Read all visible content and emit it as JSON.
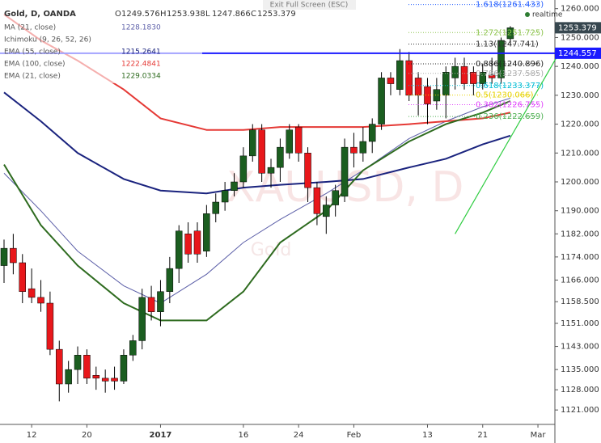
{
  "chart_data": {
    "type": "candlestick",
    "symbol": "Gold, D, OANDA",
    "header_fields": [
      "O",
      "H",
      "L",
      "C"
    ],
    "exit_text": "Exit Full Screen (ESC)",
    "realtime": "realtime",
    "watermark": "XAUUSD, D",
    "watermark_sub": "Gold",
    "ichimoku": "Ichimoku (9, 26, 52, 26)",
    "categories": [
      null,
      null,
      null,
      "12",
      null,
      null,
      null,
      null,
      null,
      "20",
      null,
      null,
      null,
      null,
      null,
      null,
      null,
      "2017",
      null,
      null,
      null,
      null,
      null,
      null,
      null,
      null,
      "16",
      null,
      null,
      null,
      null,
      null,
      "24",
      null,
      null,
      null,
      null,
      null,
      "Feb",
      null,
      null,
      null,
      null,
      null,
      null,
      null,
      "13",
      null,
      null,
      null,
      null,
      null,
      "21",
      null,
      null,
      null,
      null,
      null,
      "Mar"
    ],
    "open": [
      1171,
      1177,
      1172,
      1163,
      1160,
      1158,
      1142,
      1130,
      1135,
      1140,
      1133,
      1132,
      1132,
      1131,
      1140,
      1145,
      1160,
      1155,
      1162,
      1170,
      1182,
      1183,
      1176,
      1189,
      1193,
      1197,
      1200,
      1209,
      1218,
      1203,
      1205,
      1210,
      1219,
      1210,
      1198,
      1188,
      1192,
      1195,
      1212,
      1210,
      1214,
      1220,
      1236,
      1232,
      1242,
      1236,
      1233,
      1228,
      1230,
      1236,
      1240,
      1238,
      1234,
      1237,
      1236,
      1249.576,
      null,
      null,
      null
    ],
    "high": [
      1180,
      1182,
      1175,
      1170,
      1166,
      1162,
      1145,
      1138,
      1143,
      1142,
      1136,
      1135,
      1136,
      1142,
      1147,
      1163,
      1164,
      1166,
      1174,
      1185,
      1186,
      1186,
      1192,
      1196,
      1200,
      1203,
      1212,
      1220,
      1220,
      1208,
      1215,
      1220,
      1220,
      1212,
      1200,
      1195,
      1199,
      1215,
      1217,
      1219,
      1222,
      1238,
      1238,
      1246,
      1245,
      1238,
      1236,
      1236,
      1240,
      1243,
      1243,
      1240,
      1241,
      1243,
      1250,
      1253.938,
      null,
      null,
      null
    ],
    "low": [
      1165,
      1168,
      1158,
      1158,
      1155,
      1140,
      1124,
      1127,
      1130,
      1130,
      1128,
      1127,
      1128,
      1130,
      1138,
      1142,
      1152,
      1150,
      1158,
      1165,
      1172,
      1172,
      1174,
      1186,
      1190,
      1195,
      1198,
      1207,
      1200,
      1198,
      1200,
      1208,
      1207,
      1193,
      1185,
      1182,
      1188,
      1193,
      1205,
      1207,
      1210,
      1218,
      1230,
      1230,
      1228,
      1223,
      1220,
      1225,
      1222,
      1232,
      1232,
      1230,
      1232,
      1234,
      1234,
      1247.866,
      null,
      null,
      null
    ],
    "close": [
      1177,
      1172,
      1162,
      1160,
      1158,
      1142,
      1130,
      1135,
      1140,
      1132,
      1132,
      1131,
      1131,
      1140,
      1145,
      1160,
      1155,
      1162,
      1170,
      1183,
      1175,
      1175,
      1189,
      1193,
      1197,
      1200,
      1209,
      1218,
      1203,
      1205,
      1212,
      1218,
      1210,
      1198,
      1189,
      1192,
      1197,
      1212,
      1210,
      1214,
      1220,
      1236,
      1234,
      1242,
      1230,
      1230,
      1227,
      1232,
      1238,
      1240,
      1234,
      1234,
      1238,
      1236,
      1249,
      1253.379,
      null,
      null,
      null
    ],
    "up_color": "#1b5e20",
    "down_color": "#e8171b",
    "series": [
      {
        "name": "MA (21, close)",
        "last_label": "1228.1830",
        "color": "#5c5fa8",
        "width": 1,
        "x": [
          0,
          4,
          8,
          13,
          17,
          22,
          26,
          30,
          35,
          39,
          44,
          48,
          52,
          55
        ],
        "values": [
          1203,
          1190,
          1176,
          1164,
          1158,
          1168,
          1179,
          1187,
          1196,
          1204,
          1215,
          1221,
          1226,
          1229
        ]
      },
      {
        "name": "EMA (55, close)",
        "last_label": "1215.2641",
        "color": "#1a237e",
        "width": 2,
        "x": [
          0,
          4,
          8,
          13,
          17,
          22,
          26,
          30,
          35,
          39,
          44,
          48,
          52,
          55
        ],
        "values": [
          1231,
          1221,
          1210,
          1201,
          1197,
          1196,
          1198,
          1199,
          1200,
          1201,
          1205,
          1208,
          1213,
          1216
        ]
      },
      {
        "name": "EMA (100, close)",
        "last_label": "1222.4841",
        "color": "#e53935",
        "width": 2,
        "x": [
          0,
          4,
          8,
          13,
          17,
          22,
          26,
          30,
          35,
          39,
          44,
          48,
          52,
          55
        ],
        "values": [
          1258,
          1249,
          1242,
          1232,
          1222,
          1218,
          1218,
          1219,
          1219,
          1219,
          1220,
          1221,
          1222,
          1224
        ]
      },
      {
        "name": "EMA (21, close)",
        "last_label": "1229.0334",
        "color": "#2e6b1f",
        "width": 2,
        "x": [
          0,
          4,
          8,
          13,
          17,
          22,
          26,
          30,
          35,
          39,
          44,
          48,
          52,
          55
        ],
        "values": [
          1206,
          1185,
          1171,
          1158,
          1152,
          1152,
          1162,
          1179,
          1190,
          1204,
          1214,
          1220,
          1224,
          1228
        ]
      }
    ],
    "fib_levels": [
      {
        "label": "1.618(1261.433)",
        "value": 1261.433,
        "color": "#2962ff"
      },
      {
        "label": "1.272(1251.725)",
        "value": 1251.725,
        "color": "#8bc34a"
      },
      {
        "label": "1.13(1247.741)",
        "value": 1247.741,
        "color": "#333333"
      },
      {
        "label": "0.886(1240.896)",
        "value": 1240.896,
        "color": "#222222"
      },
      {
        "label": "0.786(1237.585)",
        "value": 1237.585,
        "color": "#aaaaaa"
      },
      {
        "label": "0.618(1233.377)",
        "value": 1233.377,
        "color": "#00bcd4"
      },
      {
        "label": "0.5(1230.066)",
        "value": 1230.066,
        "color": "#e6d200"
      },
      {
        "label": "0.382(1226.755)",
        "value": 1226.755,
        "color": "#e040fb"
      },
      {
        "label": "0.236(1222.659)",
        "value": 1222.659,
        "color": "#4caf50"
      }
    ],
    "trend_line": {
      "color": "#2ecc40",
      "x": [
        49,
        60
      ],
      "values": [
        1182,
        1243
      ]
    },
    "horizontal_line": {
      "value": 1244.557,
      "color": "#1a1aff"
    },
    "last_price": 1253.379,
    "ylim": [
      1116,
      1263
    ],
    "yticks": [
      {
        "value": 1121,
        "label": "1121.000"
      },
      {
        "value": 1128,
        "label": "1128.000"
      },
      {
        "value": 1135,
        "label": "1135.000"
      },
      {
        "value": 1143,
        "label": "1143.000"
      },
      {
        "value": 1151,
        "label": "1151.000"
      },
      {
        "value": 1158.5,
        "label": "1158.500"
      },
      {
        "value": 1166,
        "label": "1166.000"
      },
      {
        "value": 1174,
        "label": "1174.000"
      },
      {
        "value": 1182,
        "label": "1182.000"
      },
      {
        "value": 1190,
        "label": "1190.000"
      },
      {
        "value": 1200,
        "label": "1200.000"
      },
      {
        "value": 1210,
        "label": "1210.000"
      },
      {
        "value": 1220,
        "label": "1220.000"
      },
      {
        "value": 1230,
        "label": "1230.000"
      },
      {
        "value": 1240,
        "label": "1240.000"
      },
      {
        "value": 1250,
        "label": "1250.000"
      },
      {
        "value": 1260,
        "label": "1260.000"
      }
    ]
  }
}
